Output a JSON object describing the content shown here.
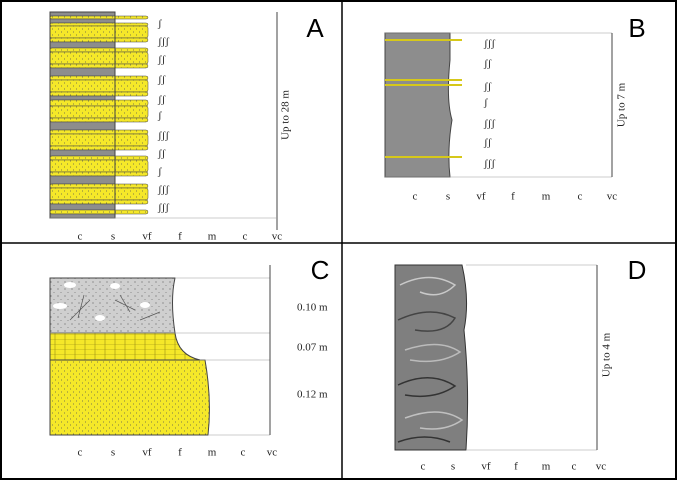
{
  "panels": [
    {
      "label": "A",
      "grain_sizes": [
        "c",
        "s",
        "vf",
        "f",
        "m",
        "c",
        "vc"
      ],
      "scale_labels": [
        "Up to 28 m"
      ]
    },
    {
      "label": "B",
      "grain_sizes": [
        "c",
        "s",
        "vf",
        "f",
        "m",
        "c",
        "vc"
      ],
      "scale_labels": [
        "Up to 7 m"
      ]
    },
    {
      "label": "C",
      "grain_sizes": [
        "c",
        "s",
        "vf",
        "f",
        "m",
        "c",
        "vc"
      ],
      "scale_labels": [
        "0.10 m",
        "0.07 m",
        "0.12 m"
      ]
    },
    {
      "label": "D",
      "grain_sizes": [
        "c",
        "s",
        "vf",
        "f",
        "m",
        "c",
        "vc"
      ],
      "scale_labels": [
        "Up to 4 m"
      ]
    }
  ]
}
